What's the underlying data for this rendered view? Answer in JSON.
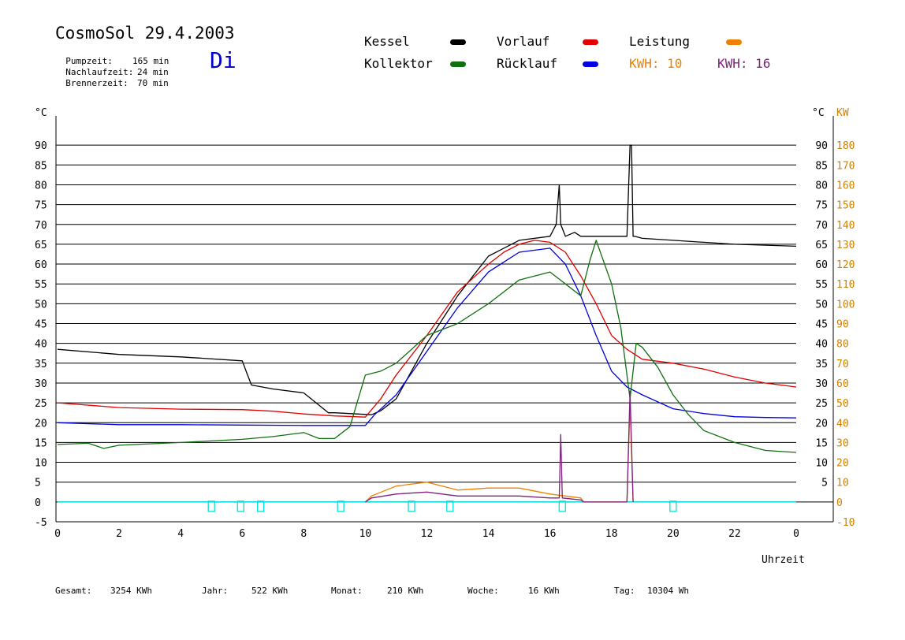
{
  "header": {
    "title": "CosmoSol 29.4.2003",
    "day": "Di",
    "stats": [
      {
        "label": "Pumpzeit:",
        "value": "165 min"
      },
      {
        "label": "Nachlaufzeit:",
        "value": "24 min"
      },
      {
        "label": "Brennerzeit:",
        "value": "70 min"
      }
    ]
  },
  "legend": {
    "kessel": "Kessel",
    "kollektor": "Kollektor",
    "vorlauf": "Vorlauf",
    "ruecklauf": "Rücklauf",
    "leistung": "Leistung",
    "kwh1_label": "KWH:",
    "kwh1_value": "10",
    "kwh2_label": "KWH:",
    "kwh2_value": "16"
  },
  "colors": {
    "kessel": "#000000",
    "vorlauf": "#e00000",
    "leistung": "#f08000",
    "kollektor": "#107010",
    "ruecklauf": "#0000e0",
    "kwh2": "#802080",
    "marker": "#00e0e0",
    "left_axis": "#000000",
    "right_axis": "#d08000"
  },
  "footer": [
    {
      "label": "Gesamt:",
      "value": "3254 KWh"
    },
    {
      "label": "Jahr:",
      "value": "522 KWh"
    },
    {
      "label": "Monat:",
      "value": "210 KWh"
    },
    {
      "label": "Woche:",
      "value": "16 KWh"
    },
    {
      "label": "Tag:",
      "value": "10304 Wh"
    }
  ],
  "chart_data": {
    "type": "line",
    "xlabel": "Uhrzeit",
    "ylabel": "°C",
    "ylabel_right": "KW",
    "xlim": [
      0,
      24
    ],
    "ylim": [
      -5,
      95
    ],
    "ylim_right": [
      -10,
      190
    ],
    "x_ticks": [
      "0",
      "2",
      "4",
      "6",
      "8",
      "10",
      "12",
      "14",
      "16",
      "18",
      "20",
      "22",
      "0"
    ],
    "y_ticks_left": [
      "-5",
      "0",
      "5",
      "10",
      "15",
      "20",
      "25",
      "30",
      "35",
      "40",
      "45",
      "50",
      "55",
      "60",
      "65",
      "70",
      "75",
      "80",
      "85",
      "90"
    ],
    "y_ticks_right": [
      "-10",
      "0",
      "10",
      "20",
      "30",
      "40",
      "50",
      "60",
      "70",
      "80",
      "90",
      "100",
      "110",
      "120",
      "130",
      "140",
      "150",
      "160",
      "170",
      "180"
    ],
    "y_ticks_right_celsius": [
      "5",
      "10",
      "15",
      "20",
      "25",
      "30",
      "35",
      "40",
      "45",
      "50",
      "55",
      "60",
      "65",
      "70",
      "75",
      "80",
      "85",
      "90"
    ],
    "grid": true,
    "series": [
      {
        "name": "Kessel",
        "color": "#000000",
        "x": [
          0,
          2,
          4,
          6,
          6.15,
          6.3,
          7,
          8,
          8.4,
          8.8,
          9,
          10.2,
          10.5,
          11,
          12,
          13,
          14,
          15,
          16,
          16.2,
          16.3,
          16.35,
          16.5,
          16.8,
          17,
          17.5,
          18,
          18.5,
          18.6,
          18.65,
          18.7,
          18.75,
          19,
          20,
          22,
          24
        ],
        "y": [
          38.5,
          37.2,
          36.6,
          35.6,
          32.5,
          29.5,
          28.5,
          27.5,
          25,
          22.5,
          22.5,
          22,
          23,
          26,
          40,
          52,
          62,
          66,
          67,
          70,
          80,
          70,
          67,
          68,
          67,
          67,
          67,
          67,
          90,
          90,
          67,
          67,
          66.5,
          66,
          65,
          64.5
        ]
      },
      {
        "name": "Vorlauf",
        "color": "#e00000",
        "x": [
          0,
          2,
          4,
          6,
          7,
          8,
          9,
          10,
          10.5,
          11,
          12,
          13,
          14,
          14.5,
          15,
          15.5,
          16,
          16.5,
          17,
          17.5,
          18,
          18.5,
          19,
          20,
          21,
          22,
          23,
          24
        ],
        "y": [
          25,
          23.8,
          23.4,
          23.3,
          22.9,
          22.2,
          21.7,
          21.4,
          26,
          32,
          42,
          53,
          60,
          63,
          65,
          66,
          65.5,
          63,
          57,
          50,
          42,
          38.5,
          36,
          35,
          33.5,
          31.5,
          30,
          29
        ]
      },
      {
        "name": "Rücklauf",
        "color": "#0000e0",
        "x": [
          0,
          2,
          4,
          6,
          8,
          10,
          10.3,
          11,
          12,
          13,
          14,
          15,
          16,
          16.5,
          17,
          17.5,
          18,
          18.5,
          19,
          20,
          21,
          22,
          23,
          24
        ],
        "y": [
          20,
          19.5,
          19.5,
          19.4,
          19.3,
          19.3,
          22,
          27,
          38,
          49,
          58,
          63,
          64,
          60,
          52,
          42,
          33,
          29,
          27,
          23.5,
          22.3,
          21.5,
          21.3,
          21.2
        ]
      },
      {
        "name": "Kollektor",
        "color": "#107010",
        "x": [
          0,
          1,
          1.5,
          2,
          4,
          6,
          7,
          8,
          8.5,
          9,
          9.5,
          10,
          10.5,
          11,
          12,
          13,
          14,
          15,
          16,
          17,
          17.3,
          17.5,
          18,
          18.3,
          18.6,
          18.8,
          19,
          19.5,
          20,
          20.5,
          21,
          22,
          23,
          24
        ],
        "y": [
          14.5,
          14.8,
          13.5,
          14.3,
          15,
          15.8,
          16.5,
          17.5,
          16,
          16,
          19,
          32,
          33,
          35,
          42,
          45,
          50,
          56,
          58,
          52,
          61,
          66,
          55,
          44,
          26,
          40,
          39,
          34,
          27,
          22,
          18,
          15,
          13,
          12.5
        ]
      },
      {
        "name": "Leistung",
        "color": "#f08000",
        "x": [
          10,
          10.2,
          11,
          12,
          13,
          14,
          15,
          16,
          17,
          17.1,
          18.5,
          18.6,
          18.7
        ],
        "y": [
          0,
          1.5,
          4,
          5,
          3,
          3.5,
          3.5,
          2,
          1,
          0,
          0,
          25,
          0
        ]
      },
      {
        "name": "KWH 16",
        "color": "#802080",
        "x": [
          10,
          10.2,
          11,
          12,
          13,
          14,
          15,
          16,
          16.3,
          16.35,
          16.4,
          17,
          17.1,
          18.5,
          18.6,
          18.7
        ],
        "y": [
          0,
          1,
          2,
          2.5,
          1.5,
          1.5,
          1.5,
          1,
          1,
          17,
          1,
          0.5,
          0,
          0,
          28,
          0
        ]
      }
    ],
    "markers_x": [
      5,
      5.95,
      6.6,
      9.2,
      11.5,
      12.75,
      16.4,
      20
    ]
  }
}
